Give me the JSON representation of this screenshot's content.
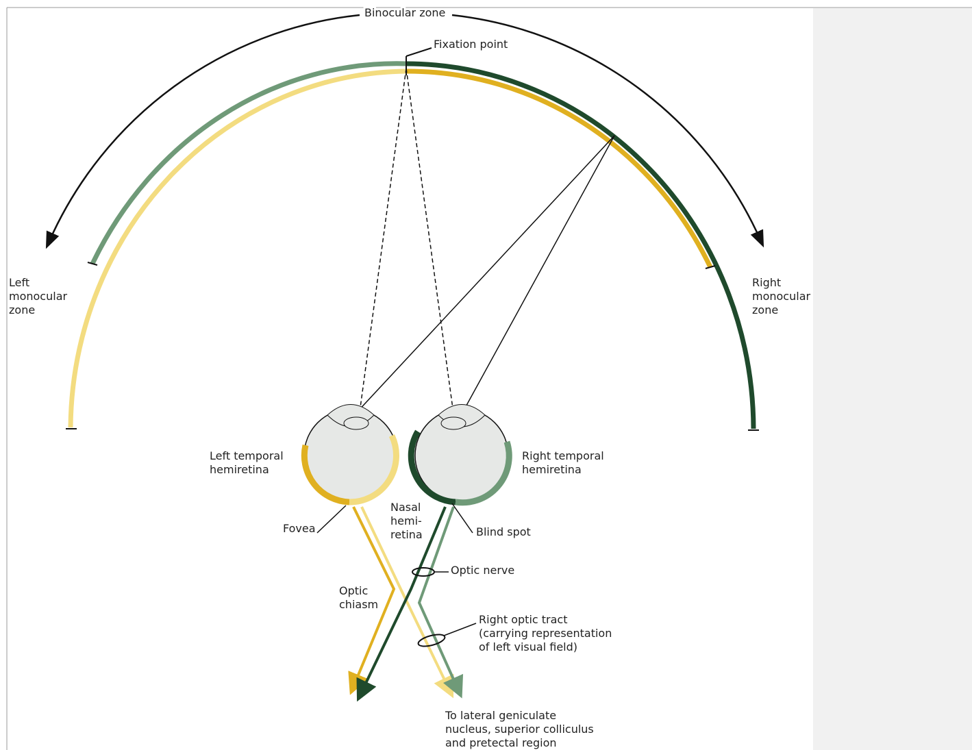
{
  "labels": [
    {
      "lines": [
        "Binocular zone"
      ]
    },
    {
      "lines": [
        "Fixation point"
      ]
    },
    {
      "lines": [
        "Left",
        "monocular",
        "zone"
      ]
    },
    {
      "lines": [
        "Right",
        "monocular",
        "zone"
      ]
    },
    {
      "lines": [
        "Left temporal",
        "hemiretina"
      ]
    },
    {
      "lines": [
        "Right temporal",
        "hemiretina"
      ]
    },
    {
      "lines": [
        "Nasal",
        "hemi-",
        "retina"
      ]
    },
    {
      "lines": [
        "Fovea"
      ]
    },
    {
      "lines": [
        "Blind spot"
      ]
    },
    {
      "lines": [
        "Optic nerve"
      ]
    },
    {
      "lines": [
        "Optic",
        "chiasm"
      ]
    },
    {
      "lines": [
        "Right optic tract",
        "(carrying representation",
        "of left visual field)"
      ]
    },
    {
      "lines": [
        "To lateral geniculate",
        "nucleus, superior colliculus",
        "and pretectal region"
      ]
    }
  ]
}
